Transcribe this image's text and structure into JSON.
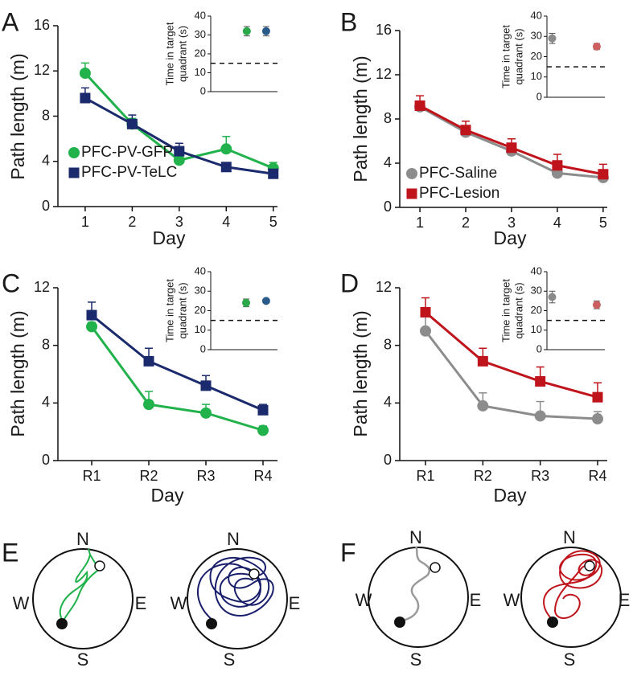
{
  "chart_data": [
    {
      "type": "line",
      "label": "A",
      "xlabel": "Day",
      "ylabel": "Path length (m)",
      "x": [
        1,
        2,
        3,
        4,
        5
      ],
      "xlim": [
        0.42,
        5.09
      ],
      "xticks": [
        1,
        2,
        3,
        4,
        5
      ],
      "ylim": [
        0,
        16
      ],
      "yticks": [
        0,
        4,
        8,
        12,
        16
      ],
      "legend": "lower left",
      "series": [
        {
          "name": "PFC-PV-GFP",
          "color": "#22b24c",
          "marker": "circle",
          "values": [
            11.8,
            7.3,
            4.1,
            5.1,
            3.4
          ],
          "errors": [
            0.9,
            0.5,
            0.4,
            1.1,
            0.5
          ]
        },
        {
          "name": "PFC-PV-TeLC",
          "color": "#1a2a6c",
          "marker": "square",
          "values": [
            9.6,
            7.3,
            4.9,
            3.5,
            2.9
          ],
          "errors": [
            0.9,
            0.8,
            0.7,
            0.3,
            0.3
          ]
        }
      ],
      "inset": {
        "ylabel": [
          "Time in target",
          "quadrant (s)"
        ],
        "ylim": [
          0,
          40
        ],
        "yticks": [
          0,
          10,
          20,
          30,
          40
        ],
        "chance": 15,
        "values": [
          32,
          32
        ],
        "errors": [
          2.5,
          2.5
        ],
        "colors": [
          "#2aa84a",
          "#2a5a8a"
        ]
      }
    },
    {
      "type": "line",
      "label": "B",
      "xlabel": "Day",
      "ylabel": "Path length (m)",
      "x": [
        1,
        2,
        3,
        4,
        5
      ],
      "xlim": [
        0.56,
        5.09
      ],
      "xticks": [
        1,
        2,
        3,
        4,
        5
      ],
      "ylim": [
        0,
        16
      ],
      "yticks": [
        0,
        4,
        8,
        12,
        16
      ],
      "legend": "lower left",
      "series": [
        {
          "name": "PFC-Saline",
          "color": "#8c8c8c",
          "marker": "circle",
          "values": [
            9.1,
            6.8,
            5.1,
            3.1,
            2.7
          ],
          "errors": [
            0.4,
            0.5,
            0.5,
            0.3,
            0.3
          ]
        },
        {
          "name": "PFC-Lesion",
          "color": "#c0141c",
          "marker": "square",
          "values": [
            9.2,
            7.0,
            5.4,
            3.8,
            3.0
          ],
          "errors": [
            0.9,
            0.8,
            0.8,
            1.0,
            0.9
          ]
        }
      ],
      "inset": {
        "ylabel": [
          "Time in target",
          "quadrant (s)"
        ],
        "ylim": [
          0,
          40
        ],
        "yticks": [
          0,
          10,
          20,
          30,
          40
        ],
        "chance": 15,
        "values": [
          29,
          25
        ],
        "errors": [
          2.5,
          1.5
        ],
        "colors": [
          "#8a8a8a",
          "#cc6060"
        ]
      }
    },
    {
      "type": "line",
      "label": "C",
      "xlabel": "Day",
      "ylabel": "Path length (m)",
      "categories": [
        "R1",
        "R2",
        "R3",
        "R4"
      ],
      "ylim": [
        0,
        12
      ],
      "yticks": [
        0,
        4,
        8,
        12
      ],
      "series": [
        {
          "color": "#22b24c",
          "marker": "circle",
          "values": [
            9.3,
            3.9,
            3.3,
            2.1
          ],
          "errors": [
            0.3,
            0.9,
            0.6,
            0.3
          ]
        },
        {
          "color": "#1a2a6c",
          "marker": "square",
          "values": [
            10.1,
            6.9,
            5.2,
            3.5
          ],
          "errors": [
            0.9,
            0.9,
            0.7,
            0.4
          ]
        }
      ],
      "inset": {
        "ylabel": [
          "Time in target",
          "quadrant (s)"
        ],
        "ylim": [
          0,
          40
        ],
        "yticks": [
          0,
          10,
          20,
          30,
          40
        ],
        "chance": 15,
        "values": [
          24,
          25
        ],
        "errors": [
          2,
          0.5
        ],
        "colors": [
          "#2aa84a",
          "#2a5a8a"
        ]
      }
    },
    {
      "type": "line",
      "label": "D",
      "xlabel": "Day",
      "ylabel": "Path length (m)",
      "categories": [
        "R1",
        "R2",
        "R3",
        "R4"
      ],
      "ylim": [
        0,
        12
      ],
      "yticks": [
        0,
        4,
        8,
        12
      ],
      "series": [
        {
          "color": "#8c8c8c",
          "marker": "circle",
          "values": [
            9.0,
            3.8,
            3.1,
            2.9
          ],
          "errors": [
            1.0,
            0.9,
            1.0,
            0.5
          ]
        },
        {
          "color": "#c0141c",
          "marker": "square",
          "values": [
            10.3,
            6.9,
            5.5,
            4.4
          ],
          "errors": [
            1.0,
            0.9,
            1.0,
            1.0
          ]
        }
      ],
      "inset": {
        "ylabel": [
          "Time in target",
          "quadrant (s)"
        ],
        "ylim": [
          0,
          40
        ],
        "yticks": [
          0,
          10,
          20,
          30,
          40
        ],
        "chance": 15,
        "values": [
          27,
          23
        ],
        "errors": [
          3,
          2
        ],
        "colors": [
          "#8a8a8a",
          "#cc6060"
        ]
      }
    }
  ],
  "diagrams": [
    {
      "label": "E",
      "mazes": [
        [
          "N",
          "E",
          "S",
          "W"
        ],
        [
          "N",
          "E",
          "S",
          "W"
        ]
      ]
    },
    {
      "label": "F",
      "mazes": [
        [
          "N",
          "E",
          "S",
          "W"
        ],
        [
          "N",
          "E",
          "S",
          "W"
        ]
      ]
    }
  ]
}
